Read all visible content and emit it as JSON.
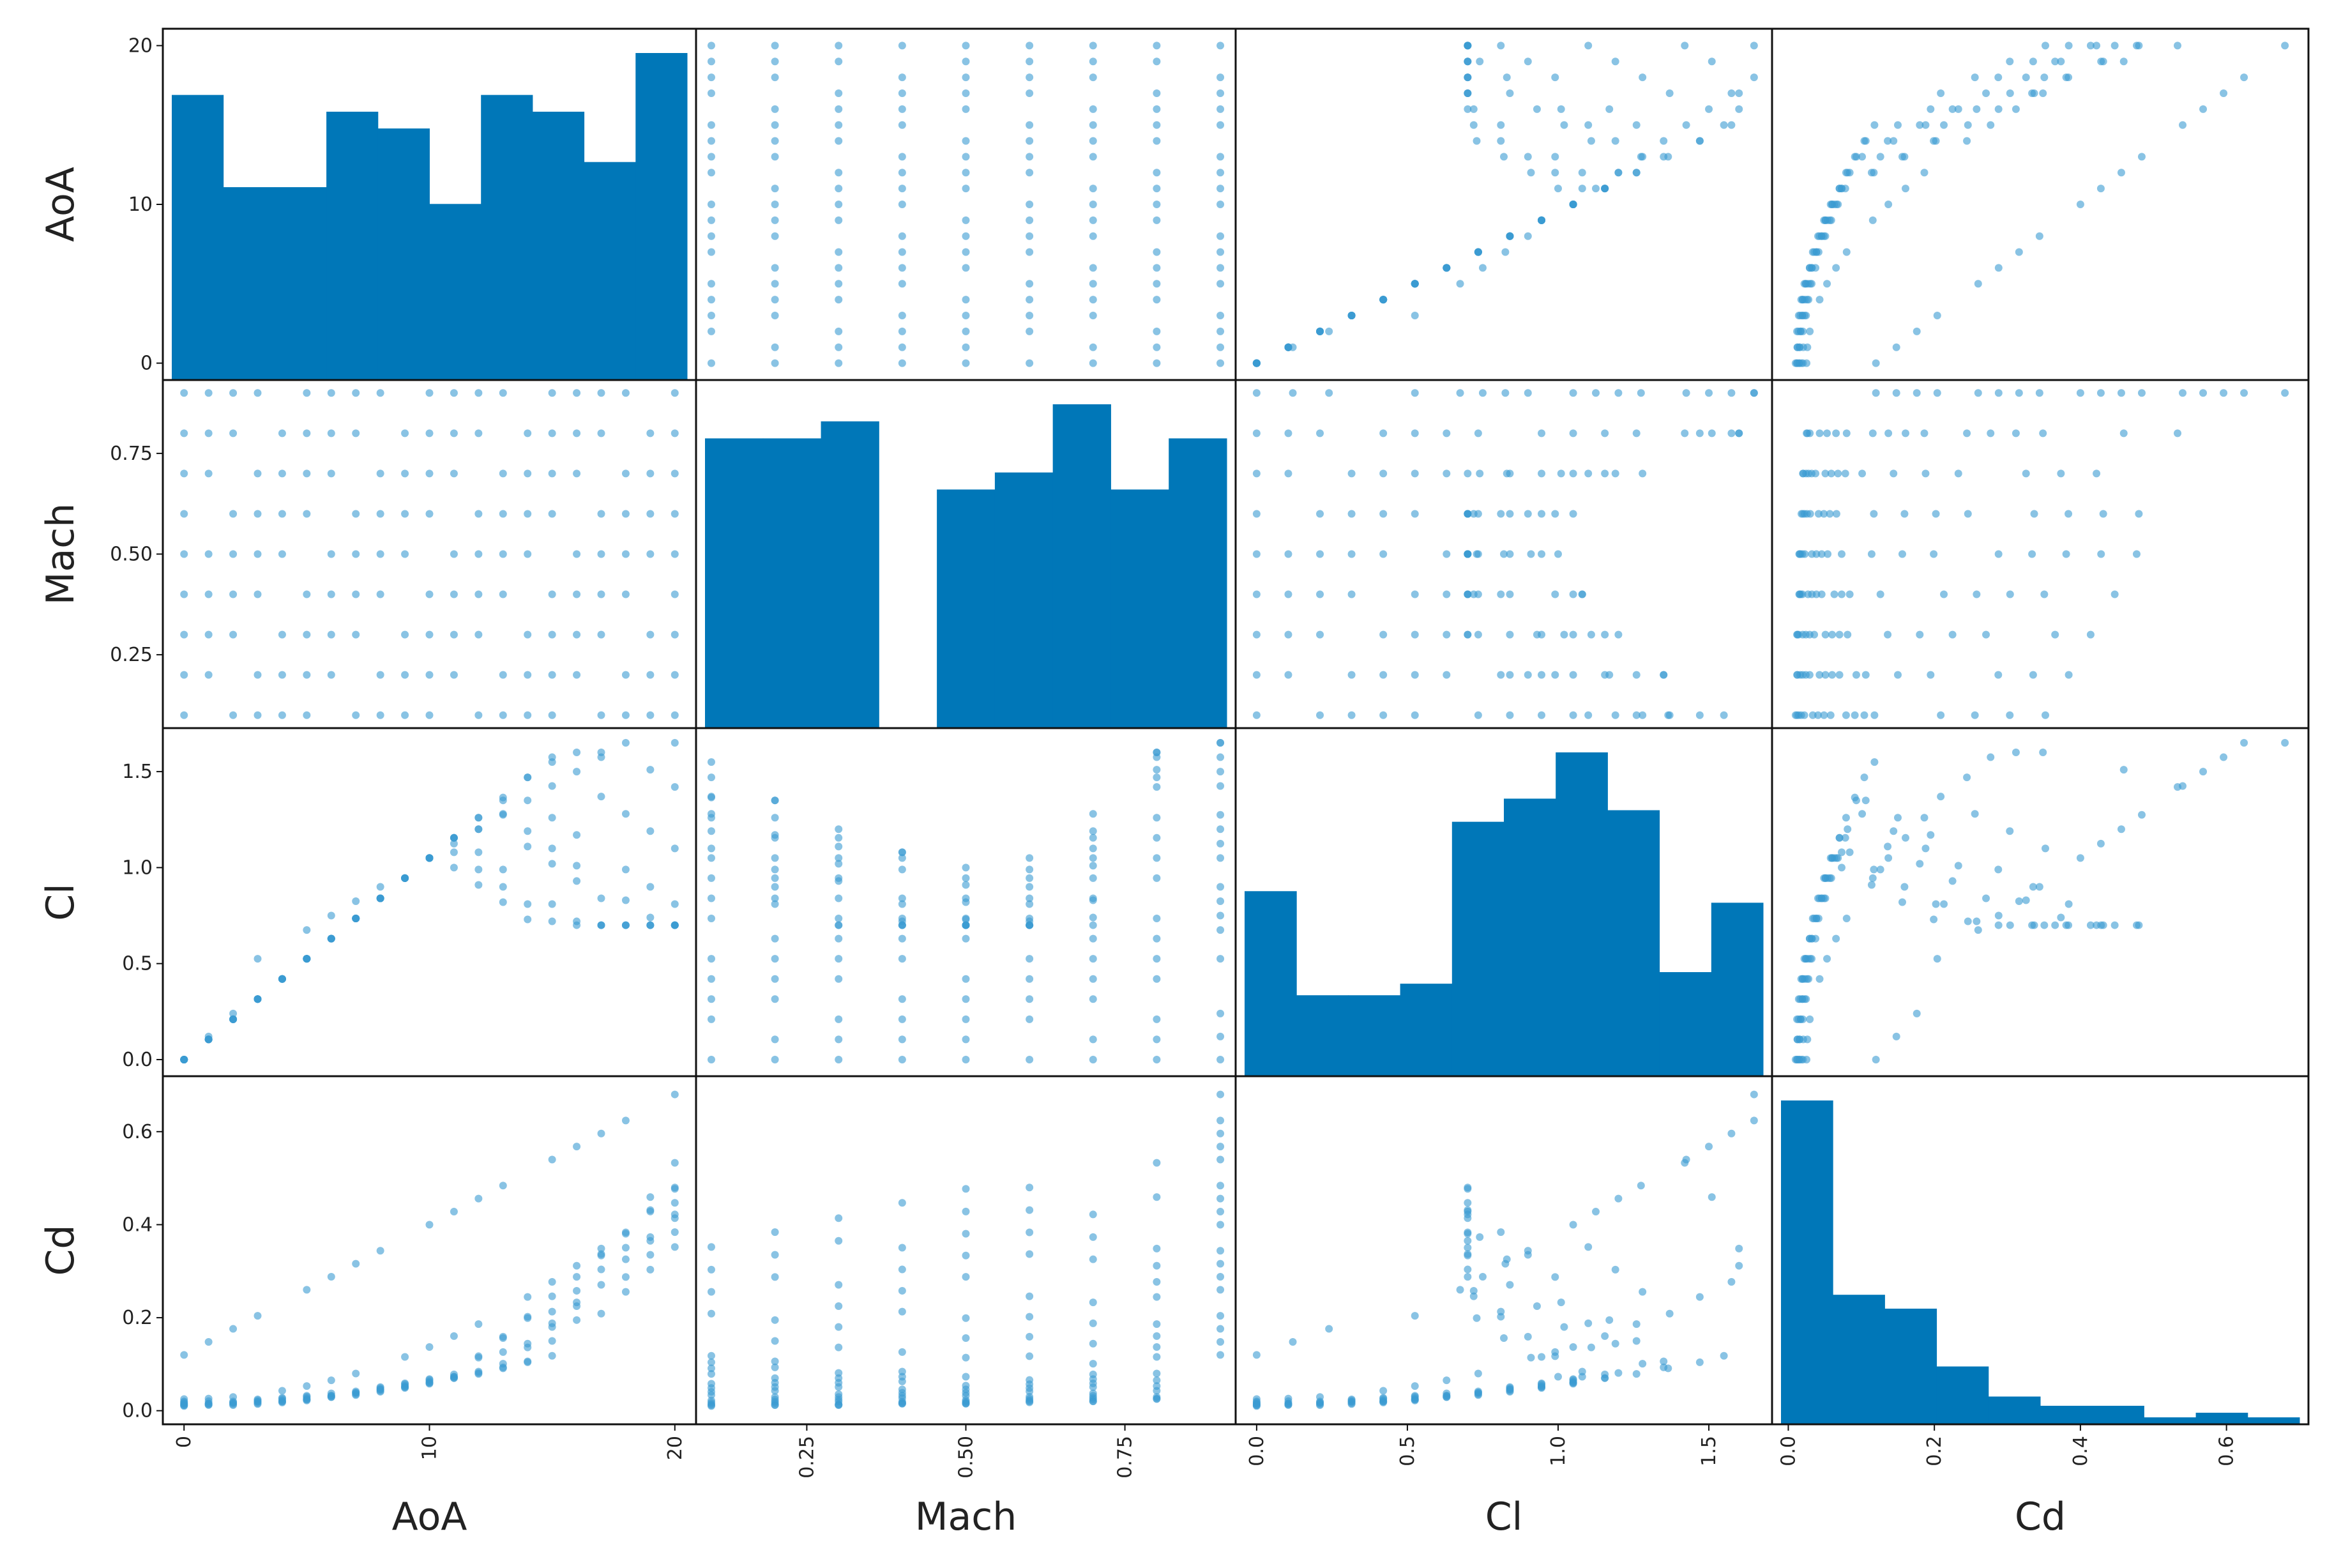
{
  "chart_data": {
    "type": "scatter_matrix",
    "title": "",
    "variables": [
      "AoA",
      "Mach",
      "Cl",
      "Cd"
    ],
    "ranges": {
      "AoA": [
        -0.5,
        20.5
      ],
      "Mach": [
        0.09,
        0.91
      ],
      "Cl": [
        -0.04,
        1.68
      ],
      "Cd": [
        -0.01,
        0.7
      ]
    },
    "ticks": {
      "AoA": [
        {
          "v": 0,
          "label": "0"
        },
        {
          "v": 10,
          "label": "10"
        },
        {
          "v": 20,
          "label": "20"
        }
      ],
      "Mach": [
        {
          "v": 0.25,
          "label": "0.25"
        },
        {
          "v": 0.5,
          "label": "0.50"
        },
        {
          "v": 0.75,
          "label": "0.75"
        }
      ],
      "Cl": [
        {
          "v": 0,
          "label": "0.0"
        },
        {
          "v": 0.5,
          "label": "0.5"
        },
        {
          "v": 1.0,
          "label": "1.0"
        },
        {
          "v": 1.5,
          "label": "1.5"
        }
      ],
      "Cd": [
        {
          "v": 0,
          "label": "0.0"
        },
        {
          "v": 0.2,
          "label": "0.2"
        },
        {
          "v": 0.4,
          "label": "0.4"
        },
        {
          "v": 0.6,
          "label": "0.6"
        }
      ]
    },
    "histograms": {
      "AoA": [
        17,
        11.5,
        11.5,
        16,
        15,
        10.5,
        17,
        16,
        13,
        19.5
      ],
      "Mach": [
        17,
        17,
        18,
        0,
        14,
        15,
        19,
        14,
        17
      ],
      "Cl": [
        16,
        7,
        7,
        8,
        22,
        24,
        28,
        23,
        9,
        15
      ],
      "Cd": [
        140,
        56,
        50,
        25,
        12,
        8,
        8,
        3,
        5,
        3
      ]
    },
    "grid": false,
    "series_color": "#3a9bd2",
    "bar_color": "#0077b8",
    "frame_color": "#111111",
    "notes": "Pairwise scatter plots off-diagonal, histograms on diagonal; scatter points generated from AoA x Mach grid."
  }
}
